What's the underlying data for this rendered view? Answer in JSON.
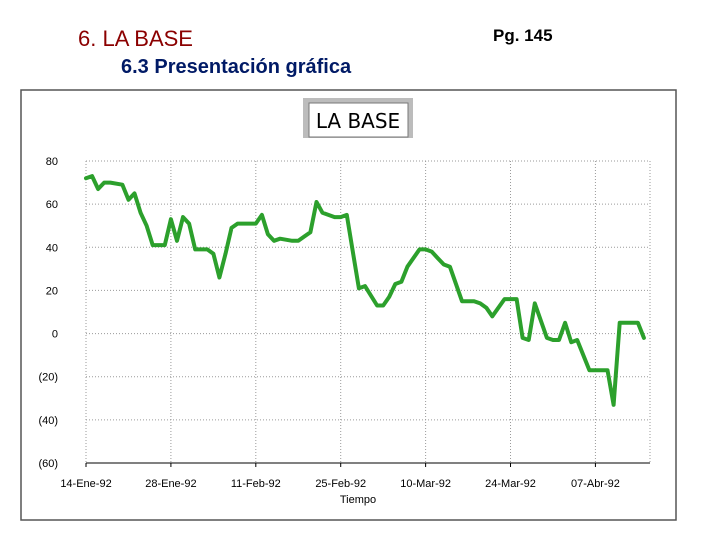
{
  "header": {
    "section": "6. LA BASE",
    "subsection": "6.3 Presentación gráfica",
    "page": "Pg. 145"
  },
  "colors": {
    "series": "#2ca02c",
    "grid": "#9a9a9a",
    "panel_border": "#555555"
  },
  "chart_data": {
    "type": "line",
    "title": "LA BASE",
    "xlabel": "Tiempo",
    "ylabel": "",
    "ylim": [
      -60,
      80
    ],
    "yticks": [
      80,
      60,
      40,
      20,
      0,
      -20,
      -40,
      -60
    ],
    "ytick_labels": [
      "80",
      "60",
      "40",
      "20",
      "0",
      "(20)",
      "(40)",
      "(60)"
    ],
    "xticks": [
      "14-Ene-92",
      "28-Ene-92",
      "11-Feb-92",
      "25-Feb-92",
      "10-Mar-92",
      "24-Mar-92",
      "07-Abr-92"
    ],
    "xlim": [
      "1992-01-14",
      "1992-04-16"
    ],
    "grid": true,
    "series": [
      {
        "name": "",
        "x": [
          "1992-01-14",
          "1992-01-15",
          "1992-01-16",
          "1992-01-17",
          "1992-01-18",
          "1992-01-20",
          "1992-01-21",
          "1992-01-22",
          "1992-01-23",
          "1992-01-24",
          "1992-01-25",
          "1992-01-27",
          "1992-01-28",
          "1992-01-29",
          "1992-01-30",
          "1992-01-31",
          "1992-02-01",
          "1992-02-03",
          "1992-02-04",
          "1992-02-05",
          "1992-02-06",
          "1992-02-07",
          "1992-02-08",
          "1992-02-10",
          "1992-02-11",
          "1992-02-12",
          "1992-02-13",
          "1992-02-14",
          "1992-02-15",
          "1992-02-17",
          "1992-02-18",
          "1992-02-19",
          "1992-02-20",
          "1992-02-21",
          "1992-02-22",
          "1992-02-24",
          "1992-02-25",
          "1992-02-26",
          "1992-02-27",
          "1992-02-28",
          "1992-02-29",
          "1992-03-02",
          "1992-03-03",
          "1992-03-04",
          "1992-03-05",
          "1992-03-06",
          "1992-03-07",
          "1992-03-09",
          "1992-03-10",
          "1992-03-11",
          "1992-03-12",
          "1992-03-13",
          "1992-03-14",
          "1992-03-16",
          "1992-03-17",
          "1992-03-18",
          "1992-03-19",
          "1992-03-20",
          "1992-03-21",
          "1992-03-23",
          "1992-03-24",
          "1992-03-25",
          "1992-03-26",
          "1992-03-27",
          "1992-03-28",
          "1992-03-30",
          "1992-03-31",
          "1992-04-01",
          "1992-04-02",
          "1992-04-03",
          "1992-04-04",
          "1992-04-06",
          "1992-04-07",
          "1992-04-08",
          "1992-04-09",
          "1992-04-10",
          "1992-04-11",
          "1992-04-13",
          "1992-04-14",
          "1992-04-15"
        ],
        "y": [
          72,
          73,
          67,
          70,
          70,
          69,
          62,
          65,
          56,
          50,
          41,
          41,
          53,
          43,
          54,
          51,
          39,
          39,
          37,
          26,
          37,
          49,
          51,
          51,
          51,
          55,
          46,
          43,
          44,
          43,
          43,
          45,
          47,
          61,
          56,
          54,
          54,
          55,
          38,
          21,
          22,
          13,
          13,
          17,
          23,
          24,
          31,
          39,
          39,
          38,
          35,
          32,
          31,
          15,
          15,
          15,
          14,
          12,
          8,
          16,
          16,
          16,
          -2,
          -3,
          14,
          -2,
          -3,
          -3,
          5,
          -4,
          -3,
          -17,
          -17,
          -17,
          -17,
          -33,
          5,
          5,
          5,
          -2
        ]
      }
    ]
  }
}
